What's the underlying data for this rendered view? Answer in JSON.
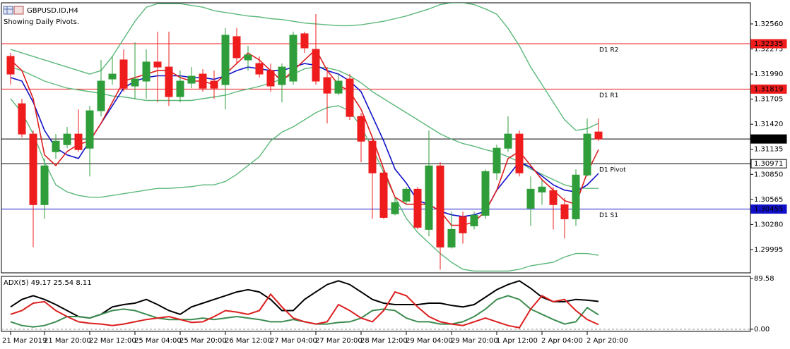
{
  "chart_data": [
    {
      "type": "candlestick",
      "title": "GBPUSD.ID,H4",
      "subtitle": "Showing Daily Pivots.",
      "categories": [
        "21 Mar 2019",
        null,
        null,
        "21 Mar 20:00",
        null,
        null,
        null,
        "22 Mar 12:00",
        null,
        null,
        null,
        "25 Mar 04:00",
        null,
        null,
        null,
        "25 Mar 20:00",
        null,
        null,
        null,
        "26 Mar 12:00",
        null,
        null,
        null,
        "27 Mar 04:00",
        null,
        null,
        null,
        "27 Mar 20:00",
        null,
        null,
        null,
        "28 Mar 12:00",
        null,
        null,
        null,
        "29 Mar 04:00",
        null,
        null,
        null,
        "29 Mar 20:00",
        null,
        null,
        null,
        "1 Apr 12:00",
        null,
        null,
        null,
        "2 Apr 04:00",
        null,
        null,
        null,
        "2 Apr 20:00",
        null
      ],
      "open": [
        1.32191,
        1.31653,
        1.31308,
        1.30505,
        1.31107,
        1.31187,
        1.31308,
        1.31147,
        1.31573,
        1.31934,
        1.32151,
        1.31854,
        1.3191,
        1.32127,
        1.3207,
        1.31733,
        1.31886,
        1.3199,
        1.3191,
        1.3187,
        1.32416,
        1.32151,
        1.3211,
        1.3203,
        1.3187,
        1.3191,
        1.32448,
        1.32271,
        1.3195,
        1.31773,
        1.31934,
        1.31508,
        1.31227,
        1.30866,
        1.30401,
        1.30545,
        1.30681,
        1.30224,
        1.30946,
        1.30023,
        1.30368,
        1.30264,
        1.30384,
        1.30866,
        1.31147,
        1.31308,
        1.30465,
        1.30649,
        1.30665,
        1.30505,
        1.30344,
        1.30842,
        1.31332
      ],
      "high": [
        1.32231,
        1.31709,
        1.31348,
        1.31027,
        1.31308,
        1.31388,
        1.31589,
        1.31629,
        1.32151,
        1.32191,
        1.32271,
        1.32351,
        1.32271,
        1.32472,
        1.32472,
        1.3203,
        1.3207,
        1.32046,
        1.3203,
        1.32512,
        1.32512,
        1.32311,
        1.32191,
        1.3211,
        1.3211,
        1.32472,
        1.32472,
        1.32672,
        1.3207,
        1.3199,
        1.3199,
        1.31549,
        1.31268,
        1.30906,
        1.30585,
        1.30706,
        1.30706,
        1.31348,
        1.30987,
        1.30425,
        1.30425,
        1.30425,
        1.30906,
        1.31187,
        1.31508,
        1.31348,
        1.30826,
        1.30786,
        1.30706,
        1.30585,
        1.30906,
        1.31484,
        1.31484
      ],
      "low": [
        1.3187,
        1.31268,
        1.30023,
        1.30344,
        1.31027,
        1.31147,
        1.31107,
        1.30826,
        1.31508,
        1.3187,
        1.31789,
        1.31709,
        1.31709,
        1.31669,
        1.31629,
        1.31669,
        1.31829,
        1.31789,
        1.31709,
        1.31589,
        1.3211,
        1.3203,
        1.3195,
        1.31789,
        1.31669,
        1.3187,
        1.32231,
        1.3187,
        1.31428,
        1.31749,
        1.31468,
        1.30987,
        1.30344,
        1.30344,
        1.30384,
        1.30505,
        1.30224,
        1.30144,
        1.29766,
        1.30007,
        1.30063,
        1.30224,
        1.30344,
        1.30786,
        1.31107,
        1.30826,
        1.30264,
        1.30505,
        1.30224,
        1.3012,
        1.30264,
        1.30826,
        1.31227
      ],
      "close": [
        1.3199,
        1.31308,
        1.30505,
        1.30946,
        1.31227,
        1.31308,
        1.31131,
        1.31573,
        1.3191,
        1.3199,
        1.31829,
        1.31934,
        1.32127,
        1.3207,
        1.31733,
        1.3191,
        1.31966,
        1.31829,
        1.31829,
        1.32432,
        1.32175,
        1.32207,
        1.3199,
        1.31854,
        1.3207,
        1.32432,
        1.32287,
        1.3191,
        1.31773,
        1.3191,
        1.31508,
        1.31227,
        1.30866,
        1.3036,
        1.30529,
        1.30681,
        1.30248,
        1.30946,
        1.30023,
        1.30224,
        1.30184,
        1.30384,
        1.30882,
        1.31147,
        1.31308,
        1.30866,
        1.30681,
        1.30706,
        1.30505,
        1.30344,
        1.30842,
        1.31308,
        1.31252
      ],
      "up_color": "#2f9e3a",
      "down_color": "#ee1c1c",
      "series": [
        {
          "color": "#5cb87a",
          "values": [
            1.3227,
            1.3223,
            1.3219,
            1.3215,
            1.3211,
            1.3207,
            1.3203,
            1.3199,
            1.3203,
            1.3219,
            1.3239,
            1.3259,
            1.3275,
            1.3279,
            1.3279,
            1.3279,
            1.3277,
            1.3275,
            1.3271,
            1.3269,
            1.3267,
            1.3265,
            1.3264,
            1.3262,
            1.3261,
            1.3259,
            1.3257,
            1.3256,
            1.3255,
            1.3254,
            1.3254,
            1.3255,
            1.3257,
            1.3259,
            1.3262,
            1.3265,
            1.3269,
            1.3273,
            1.3278,
            1.328,
            1.328,
            1.3278,
            1.3273,
            1.3267,
            1.3251,
            1.3231,
            1.3207,
            1.3187,
            1.3167,
            1.3147,
            1.3135,
            1.3137,
            1.3143
          ]
        },
        {
          "color": "#5cb87a",
          "values": [
            1.3207,
            1.3203,
            1.3197,
            1.3191,
            1.3187,
            1.3183,
            1.3181,
            1.3179,
            1.3177,
            1.3174,
            1.3173,
            1.3171,
            1.3169,
            1.3169,
            1.3169,
            1.3169,
            1.3169,
            1.3171,
            1.3173,
            1.3175,
            1.3179,
            1.3182,
            1.3185,
            1.3189,
            1.3193,
            1.3199,
            1.3205,
            1.3207,
            1.3206,
            1.3203,
            1.3197,
            1.3189,
            1.3179,
            1.3171,
            1.3163,
            1.3155,
            1.3147,
            1.3139,
            1.3131,
            1.3125,
            1.312,
            1.3117,
            1.3113,
            1.311,
            1.3105,
            1.3099,
            1.3091,
            1.3085,
            1.3079,
            1.3073,
            1.307,
            1.3069,
            1.3069
          ]
        },
        {
          "color": "#5cb87a",
          "values": [
            1.3171,
            1.3155,
            1.3131,
            1.3099,
            1.3073,
            1.3065,
            1.3061,
            1.3059,
            1.3059,
            1.3061,
            1.3063,
            1.3065,
            1.3067,
            1.3069,
            1.3069,
            1.307,
            1.3071,
            1.3073,
            1.3073,
            1.3077,
            1.3085,
            1.3095,
            1.3105,
            1.3123,
            1.3133,
            1.3139,
            1.3147,
            1.3155,
            1.3161,
            1.3163,
            1.3157,
            1.3139,
            1.3115,
            1.3087,
            1.3059,
            1.3035,
            1.3019,
            1.3007,
            1.2995,
            1.2985,
            1.2977,
            1.2975,
            1.2975,
            1.2975,
            1.2975,
            1.2977,
            1.2981,
            1.2983,
            1.2985,
            1.2991,
            1.2995,
            1.2995,
            1.2993
          ]
        },
        {
          "color": "#1010c8",
          "values": [
            1.3195,
            1.3191,
            1.3167,
            1.3135,
            1.3115,
            1.3107,
            1.3103,
            1.3123,
            1.3143,
            1.3163,
            1.3183,
            1.3191,
            1.3195,
            1.3197,
            1.3197,
            1.3197,
            1.3195,
            1.3195,
            1.3193,
            1.3197,
            1.3203,
            1.3207,
            1.3205,
            1.3203,
            1.3203,
            1.3207,
            1.3211,
            1.3209,
            1.3203,
            1.3199,
            1.3191,
            1.3179,
            1.3151,
            1.3123,
            1.3091,
            1.3075,
            1.3055,
            1.3051,
            1.3043,
            1.3039,
            1.3037,
            1.3039,
            1.3043,
            1.3067,
            1.3083,
            1.3099,
            1.3093,
            1.3083,
            1.3073,
            1.3067,
            1.3065,
            1.3073,
            1.3086
          ]
        },
        {
          "color": "#dc1e1e",
          "values": [
            1.3215,
            1.3203,
            1.3171,
            1.3107,
            1.3095,
            1.3111,
            1.3119,
            1.3123,
            1.3143,
            1.3167,
            1.3191,
            1.3195,
            1.3199,
            1.3203,
            1.3203,
            1.3195,
            1.3191,
            1.3191,
            1.3187,
            1.3199,
            1.3211,
            1.3223,
            1.3215,
            1.3203,
            1.3191,
            1.3203,
            1.3215,
            1.3227,
            1.3203,
            1.3187,
            1.3179,
            1.3159,
            1.3127,
            1.3091,
            1.3059,
            1.3051,
            1.3051,
            1.3051,
            1.3043,
            1.3027,
            1.3027,
            1.3031,
            1.3043,
            1.3067,
            1.3103,
            1.3111,
            1.3095,
            1.3079,
            1.3067,
            1.3055,
            1.3051,
            1.3087,
            1.3113
          ]
        }
      ],
      "levels": [
        {
          "label": "D1 R2",
          "value": 1.32335,
          "color": "#ee1c1c",
          "tag_color": "#ee1c1c"
        },
        {
          "label": "D1 R1",
          "value": 1.31819,
          "color": "#ee1c1c",
          "tag_color": "#ee1c1c"
        },
        {
          "value": 1.31252,
          "color": "#000000",
          "tag_color": "#000000"
        },
        {
          "label": "D1 Pivot",
          "value": 1.30971,
          "color": "#000000",
          "tag_color": "#ffffff"
        },
        {
          "label": "D1 S1",
          "value": 1.30455,
          "color": "#1010c8",
          "tag_color": "#1010c8"
        }
      ],
      "ylim": [
        1.2973,
        1.328
      ],
      "yticks": [
        {
          "value": 1.3256,
          "label": "1.32560"
        },
        1.32275,
        {
          "value": 1.3199,
          "label": "1.31990"
        },
        1.31705,
        {
          "value": 1.3142,
          "label": "1.31420"
        },
        1.31135,
        {
          "value": 1.3085,
          "label": "1.30850"
        },
        1.30565,
        {
          "value": 1.3028,
          "label": "1.30280"
        },
        1.29995
      ]
    },
    {
      "type": "line",
      "title": "ADX(5) 49.17 25.54 8.11",
      "series": [
        {
          "color": "#000000",
          "values": [
            39.5,
            52.7,
            59.3,
            52.7,
            43.5,
            32.9,
            22.4,
            19.8,
            26.3,
            39.5,
            43.5,
            46.1,
            52.7,
            43.5,
            32.9,
            26.3,
            39.5,
            46.1,
            52.7,
            59.3,
            65.9,
            69.8,
            65.9,
            52.7,
            32.9,
            32.9,
            52.7,
            65.9,
            79.0,
            85.6,
            79.0,
            65.9,
            52.7,
            46.1,
            43.5,
            43.5,
            43.5,
            46.1,
            46.1,
            42.1,
            39.5,
            43.5,
            56.6,
            69.8,
            79.0,
            85.6,
            72.4,
            56.6,
            48.7,
            48.7,
            52.7,
            51.4,
            49.17
          ]
        },
        {
          "color": "#3c8c50",
          "values": [
            13.2,
            6.6,
            4.0,
            6.6,
            13.2,
            22.4,
            22.4,
            19.8,
            26.3,
            32.9,
            35.6,
            32.9,
            26.3,
            19.8,
            17.1,
            17.1,
            17.1,
            19.8,
            17.1,
            19.8,
            22.4,
            19.8,
            17.1,
            13.2,
            13.2,
            17.1,
            13.2,
            9.2,
            9.2,
            11.9,
            13.2,
            19.8,
            32.9,
            35.6,
            32.9,
            19.8,
            13.2,
            13.2,
            9.2,
            9.2,
            13.2,
            22.4,
            35.6,
            52.7,
            59.3,
            52.7,
            35.6,
            26.3,
            17.1,
            9.2,
            13.2,
            38.2,
            25.54
          ]
        },
        {
          "color": "#dc1e1e",
          "values": [
            26.3,
            32.9,
            46.1,
            48.7,
            32.9,
            22.4,
            13.2,
            10.5,
            9.2,
            6.6,
            9.2,
            13.2,
            17.1,
            19.8,
            22.4,
            17.1,
            11.9,
            13.2,
            22.4,
            32.9,
            30.3,
            26.3,
            32.9,
            61.9,
            39.5,
            19.8,
            13.2,
            9.2,
            13.2,
            43.5,
            32.9,
            19.8,
            13.2,
            32.9,
            65.9,
            59.3,
            39.5,
            22.4,
            13.2,
            9.2,
            6.6,
            13.2,
            19.8,
            13.2,
            6.6,
            2.6,
            35.6,
            59.3,
            48.7,
            52.7,
            32.9,
            17.1,
            8.11
          ]
        }
      ],
      "ylim": [
        -3.8,
        93.4
      ],
      "yticks": [
        89.58,
        {
          "value": 0,
          "label": "0.00"
        }
      ]
    }
  ]
}
